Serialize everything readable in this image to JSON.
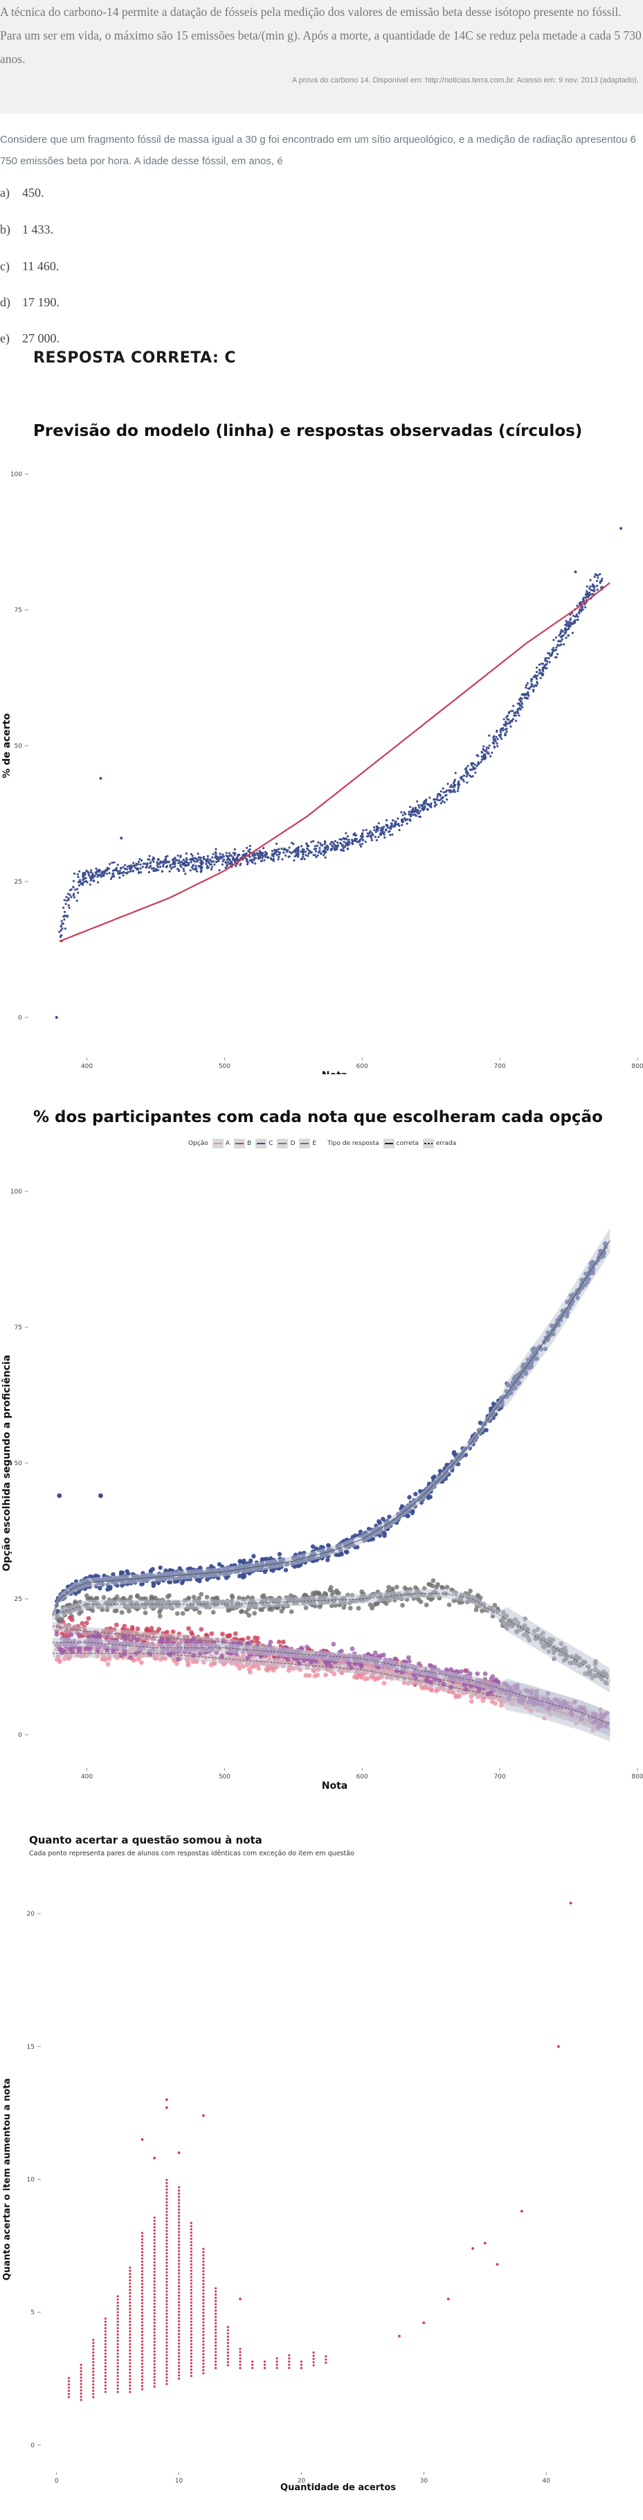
{
  "intro": {
    "text": "A técnica do carbono-14 permite a datação de fósseis pela medição dos valores de emissão beta desse isótopo presente no fóssil. Para um ser em vida, o máximo são 15 emissões beta/(min g). Após a morte, a quantidade de 14C se reduz pela metade a cada 5 730 anos.",
    "source": "A prova do carbono 14. Disponível em: http://noticias.terra.com.br. Acesso em: 9 nov. 2013 (adaptado)."
  },
  "question": {
    "stem": "Considere que um fragmento fóssil de massa igual a 30 g foi encontrado em um sítio arqueológico, e a medição de radiação apresentou 6 750 emissões beta por hora. A idade desse fóssil, em anos, é",
    "options": [
      {
        "letter": "a)",
        "text": "450."
      },
      {
        "letter": "b)",
        "text": "1 433."
      },
      {
        "letter": "c)",
        "text": "11 460."
      },
      {
        "letter": "d)",
        "text": "17 190."
      },
      {
        "letter": "e)",
        "text": "27 000."
      }
    ],
    "answer": "RESPOSTA CORRETA: C"
  },
  "colors": {
    "navy": "#3d4f8f",
    "red": "#cc3d55",
    "grey": "#6f6f6f",
    "pink": "#f08ea0",
    "purple": "#9b5ea8",
    "band": "#c0c4d4"
  },
  "chart_data": [
    {
      "type": "scatter",
      "title": "Previsão do modelo (linha) e respostas observadas (círculos)",
      "xlabel": "Nota",
      "ylabel": "% de acerto",
      "xlim": [
        360,
        800
      ],
      "ylim": [
        0,
        100
      ],
      "xticks": [
        400,
        500,
        600,
        700,
        800
      ],
      "yticks": [
        0,
        25,
        50,
        75,
        100
      ],
      "model_line": {
        "name": "previsão do modelo",
        "x": [
          380,
          400,
          430,
          460,
          500,
          530,
          560,
          600,
          640,
          680,
          720,
          760,
          780
        ],
        "y": [
          14,
          16,
          19,
          22,
          27,
          32,
          37,
          45,
          53,
          61,
          69,
          76,
          80
        ]
      },
      "observed_trend": {
        "name": "respostas observadas",
        "x": [
          380,
          385,
          390,
          395,
          400,
          420,
          450,
          480,
          500,
          530,
          560,
          580,
          600,
          620,
          640,
          660,
          680,
          690,
          700,
          720,
          740,
          760,
          770
        ],
        "y": [
          15,
          20,
          23,
          25,
          26,
          27,
          28,
          28.5,
          29,
          30,
          30.5,
          31.5,
          33,
          35,
          38,
          41,
          46,
          49,
          52,
          60,
          68,
          76,
          80
        ]
      },
      "outliers": [
        {
          "x": 378,
          "y": 0
        },
        {
          "x": 410,
          "y": 44
        },
        {
          "x": 788,
          "y": 90
        },
        {
          "x": 755,
          "y": 82
        },
        {
          "x": 425,
          "y": 33
        }
      ]
    },
    {
      "type": "scatter",
      "title": "% dos participantes com cada nota que escolheram cada opção",
      "xlabel": "Nota",
      "ylabel": "Opção escolhida segundo a proficiência",
      "xlim": [
        360,
        800
      ],
      "ylim": [
        0,
        100
      ],
      "xticks": [
        400,
        500,
        600,
        700,
        800
      ],
      "yticks": [
        0,
        25,
        50,
        75,
        100
      ],
      "legend": {
        "option_title": "Opção",
        "options": [
          "A",
          "B",
          "C",
          "D",
          "E"
        ],
        "type_title": "Tipo de resposta",
        "types": [
          "correta",
          "errada"
        ]
      },
      "series": [
        {
          "name": "C",
          "kind": "correta",
          "x": [
            375,
            380,
            390,
            400,
            450,
            500,
            550,
            580,
            600,
            620,
            640,
            660,
            680,
            700,
            720,
            740,
            760,
            780
          ],
          "y": [
            22,
            25,
            27,
            28,
            29,
            30,
            32,
            34,
            36,
            39,
            43,
            48,
            54,
            61,
            68,
            75,
            83,
            91
          ]
        },
        {
          "name": "E",
          "kind": "errada",
          "x": [
            375,
            400,
            450,
            500,
            550,
            600,
            640,
            660,
            680,
            700,
            720,
            740,
            760,
            780
          ],
          "y": [
            22,
            24,
            24,
            24,
            24.5,
            25,
            26,
            26,
            25,
            22,
            19,
            16,
            13,
            10
          ]
        },
        {
          "name": "B",
          "kind": "errada",
          "x": [
            375,
            400,
            450,
            500,
            550,
            600,
            640,
            680,
            720,
            760,
            780
          ],
          "y": [
            20,
            19,
            18,
            17,
            15,
            13,
            11,
            9,
            7,
            4,
            2
          ]
        },
        {
          "name": "A",
          "kind": "errada",
          "x": [
            375,
            400,
            450,
            500,
            550,
            600,
            640,
            680,
            720,
            760,
            780
          ],
          "y": [
            15,
            15,
            15,
            14,
            13,
            12,
            10,
            8,
            6,
            3,
            1
          ]
        },
        {
          "name": "D",
          "kind": "errada",
          "x": [
            375,
            400,
            450,
            500,
            550,
            600,
            640,
            680,
            720,
            760,
            780
          ],
          "y": [
            17,
            17,
            16,
            16,
            15,
            14,
            12,
            10,
            7,
            4,
            2
          ]
        }
      ],
      "outliers": [
        {
          "series": "C",
          "x": 380,
          "y": 44
        },
        {
          "series": "C",
          "x": 410,
          "y": 44
        }
      ]
    },
    {
      "type": "scatter",
      "title": "Quanto acertar a questão somou à nota",
      "subtitle": "Cada ponto representa pares de alunos com respostas idênticas com exceção do item em questão",
      "xlabel": "Quantidade de acertos",
      "ylabel": "Quanto acertar o item aumentou a nota",
      "xlim": [
        -1,
        47
      ],
      "ylim": [
        -0.5,
        20.5
      ],
      "xticks": [
        0,
        10,
        20,
        30,
        40
      ],
      "yticks": [
        0,
        5,
        10,
        15,
        20
      ],
      "columns": [
        {
          "x": 1,
          "min": 1.8,
          "max": 2.6
        },
        {
          "x": 2,
          "min": 1.7,
          "max": 3.1
        },
        {
          "x": 3,
          "min": 1.8,
          "max": 4.0
        },
        {
          "x": 4,
          "min": 2.0,
          "max": 4.8
        },
        {
          "x": 5,
          "min": 2.0,
          "max": 5.7
        },
        {
          "x": 6,
          "min": 2.0,
          "max": 6.7
        },
        {
          "x": 7,
          "min": 2.1,
          "max": 8.1
        },
        {
          "x": 8,
          "min": 2.2,
          "max": 8.6
        },
        {
          "x": 9,
          "min": 2.3,
          "max": 10.0
        },
        {
          "x": 10,
          "min": 2.5,
          "max": 9.8
        },
        {
          "x": 11,
          "min": 2.6,
          "max": 8.4
        },
        {
          "x": 12,
          "min": 2.7,
          "max": 7.5
        },
        {
          "x": 13,
          "min": 2.9,
          "max": 6.0
        },
        {
          "x": 14,
          "min": 3.0,
          "max": 4.5
        },
        {
          "x": 15,
          "min": 2.9,
          "max": 3.7
        },
        {
          "x": 16,
          "min": 2.9,
          "max": 3.2
        },
        {
          "x": 17,
          "min": 2.9,
          "max": 3.2
        },
        {
          "x": 18,
          "min": 2.9,
          "max": 3.3
        },
        {
          "x": 19,
          "min": 2.9,
          "max": 3.4
        },
        {
          "x": 20,
          "min": 2.9,
          "max": 3.2
        },
        {
          "x": 21,
          "min": 3.0,
          "max": 3.5
        },
        {
          "x": 22,
          "min": 3.1,
          "max": 3.4
        }
      ],
      "points": [
        {
          "x": 9,
          "y": 13
        },
        {
          "x": 9,
          "y": 12.7
        },
        {
          "x": 12,
          "y": 12.4
        },
        {
          "x": 7,
          "y": 11.5
        },
        {
          "x": 10,
          "y": 11.0
        },
        {
          "x": 8,
          "y": 10.8
        },
        {
          "x": 15,
          "y": 5.5
        },
        {
          "x": 28,
          "y": 4.1
        },
        {
          "x": 30,
          "y": 4.6
        },
        {
          "x": 32,
          "y": 5.5
        },
        {
          "x": 34,
          "y": 7.4
        },
        {
          "x": 35,
          "y": 7.6
        },
        {
          "x": 36,
          "y": 6.8
        },
        {
          "x": 38,
          "y": 8.8
        },
        {
          "x": 41,
          "y": 15.0
        },
        {
          "x": 42,
          "y": 20.4
        }
      ]
    }
  ]
}
